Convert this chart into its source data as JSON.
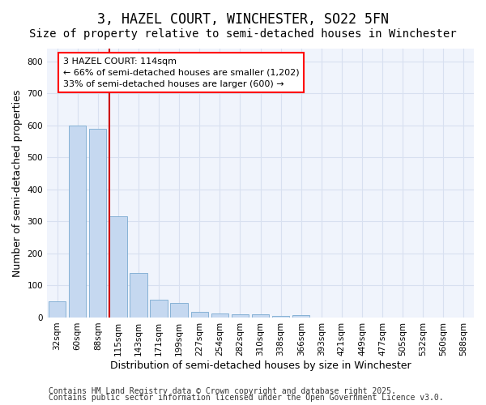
{
  "title": "3, HAZEL COURT, WINCHESTER, SO22 5FN",
  "subtitle": "Size of property relative to semi-detached houses in Winchester",
  "xlabel": "Distribution of semi-detached houses by size in Winchester",
  "ylabel": "Number of semi-detached properties",
  "categories": [
    "32sqm",
    "60sqm",
    "88sqm",
    "115sqm",
    "143sqm",
    "171sqm",
    "199sqm",
    "227sqm",
    "254sqm",
    "282sqm",
    "310sqm",
    "338sqm",
    "366sqm",
    "393sqm",
    "421sqm",
    "449sqm",
    "477sqm",
    "505sqm",
    "532sqm",
    "560sqm",
    "588sqm"
  ],
  "values": [
    50,
    600,
    590,
    315,
    140,
    55,
    45,
    18,
    13,
    10,
    10,
    5,
    8,
    0,
    0,
    0,
    0,
    0,
    0,
    0,
    0
  ],
  "bar_color": "#c5d8f0",
  "bar_edge_color": "#7aaad0",
  "vline_x_index": 3,
  "vline_color": "#cc0000",
  "annotation_text_line1": "3 HAZEL COURT: 114sqm",
  "annotation_text_line2": "← 66% of semi-detached houses are smaller (1,202)",
  "annotation_text_line3": "33% of semi-detached houses are larger (600) →",
  "ylim": [
    0,
    840
  ],
  "yticks": [
    0,
    100,
    200,
    300,
    400,
    500,
    600,
    700,
    800
  ],
  "footer1": "Contains HM Land Registry data © Crown copyright and database right 2025.",
  "footer2": "Contains public sector information licensed under the Open Government Licence v3.0.",
  "fig_bg_color": "#ffffff",
  "plot_bg_color": "#f0f4fc",
  "grid_color": "#d8e0f0",
  "title_fontsize": 12,
  "subtitle_fontsize": 10,
  "axis_label_fontsize": 9,
  "tick_fontsize": 7.5,
  "annotation_fontsize": 8,
  "footer_fontsize": 7
}
